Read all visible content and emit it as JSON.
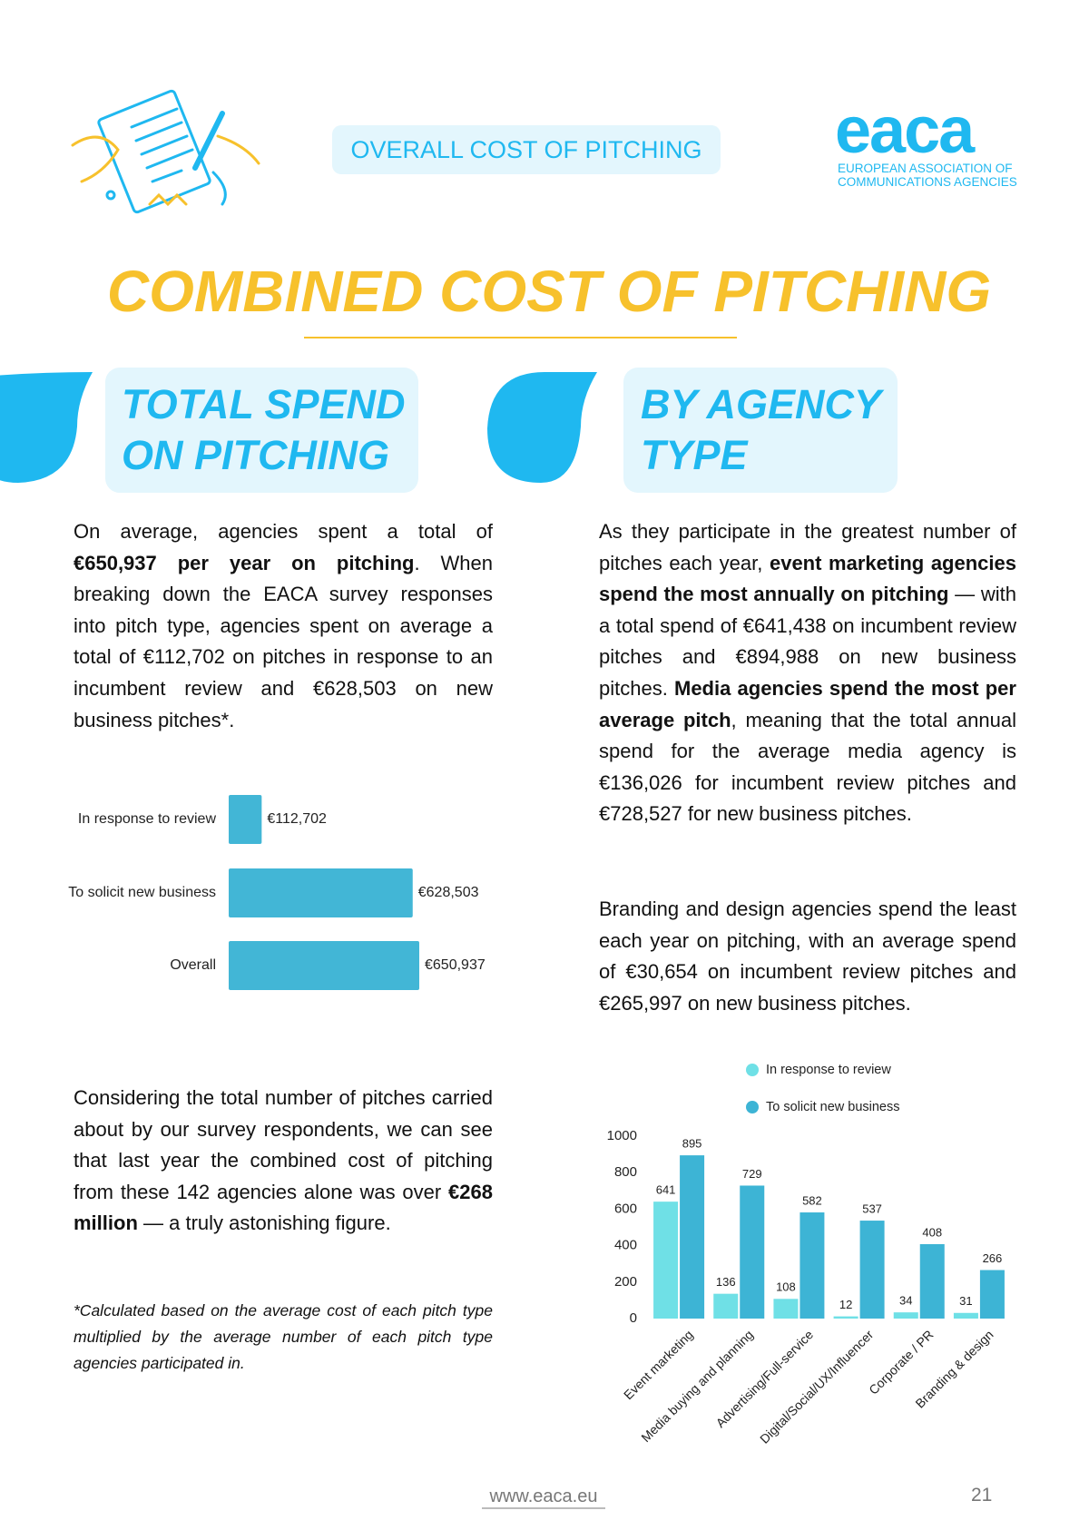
{
  "header": {
    "section": "OVERALL COST OF PITCHING",
    "logo": "eaca",
    "org_lines": [
      "EUROPEAN ASSOCIATION OF",
      "COMMUNICATIONS AGENCIES"
    ]
  },
  "title": "COMBINED COST OF PITCHING",
  "left": {
    "heading": [
      "TOTAL SPEND",
      "ON PITCHING"
    ],
    "paragraphs": [
      [
        "On average, agencies spent a total of ",
        "€650,937 per year on pitching",
        ". When breaking down the EACA survey responses into pitch type, agencies spent on average a total of €112,702 on pitches in response to an incumbent review and €628,503 on new business pitches*."
      ],
      [
        "Considering the total number of pitches carried about by our survey respondents, we can see that last year the combined cost of pitching from these 142 agencies alone was over ",
        "€268 million",
        " — a truly astonishing figure."
      ]
    ],
    "footnote": "*Calculated based on the average cost of each pitch type multiplied by the average number of each pitch type agencies participated in."
  },
  "right": {
    "heading": [
      "BY AGENCY",
      "TYPE"
    ],
    "paragraphs": [
      [
        "As they participate in the greatest number of pitches each year, ",
        "event marketing agencies spend the most annually on pitching",
        " — with a total spend of €641,438 on incumbent review pitches and €894,988 on new business pitches. ",
        "Media agencies spend the most per average pitch",
        ", meaning that the total annual spend for the average media agency is €136,026 for incumbent review pitches and €728,527 for new business pitches."
      ],
      [
        "Branding and design agencies spend the least each year on pitching, with an average spend of €30,654 on incumbent review pitches and €265,997 on new business pitches."
      ]
    ]
  },
  "chart_data": [
    {
      "type": "hbar",
      "categories": [
        "In response to review",
        "To solicit new business",
        "Overall"
      ],
      "values": [
        112702,
        628503,
        650937
      ],
      "value_labels": [
        "€112,702",
        "€628,503",
        "€650,937"
      ],
      "color": "#42b6d6"
    },
    {
      "type": "grouped-bar",
      "categories": [
        "Event marketing",
        "Media buying and planning",
        "Advertising/Full-service",
        "Digital/Social/UX/Influencer",
        "Corporate / PR",
        "Branding & design"
      ],
      "series": [
        {
          "name": "In response to review",
          "color": "#6fe0e6",
          "values": [
            641,
            136,
            108,
            12,
            34,
            31
          ]
        },
        {
          "name": "To solicit new business",
          "color": "#3db4d5",
          "values": [
            895,
            729,
            582,
            537,
            408,
            266
          ]
        }
      ],
      "ylim": [
        0,
        1000
      ],
      "yticks": [
        0,
        200,
        400,
        600,
        800,
        1000
      ],
      "grid": false,
      "legend": "top"
    }
  ],
  "footer": {
    "url": "www.eaca.eu",
    "page": "21"
  }
}
